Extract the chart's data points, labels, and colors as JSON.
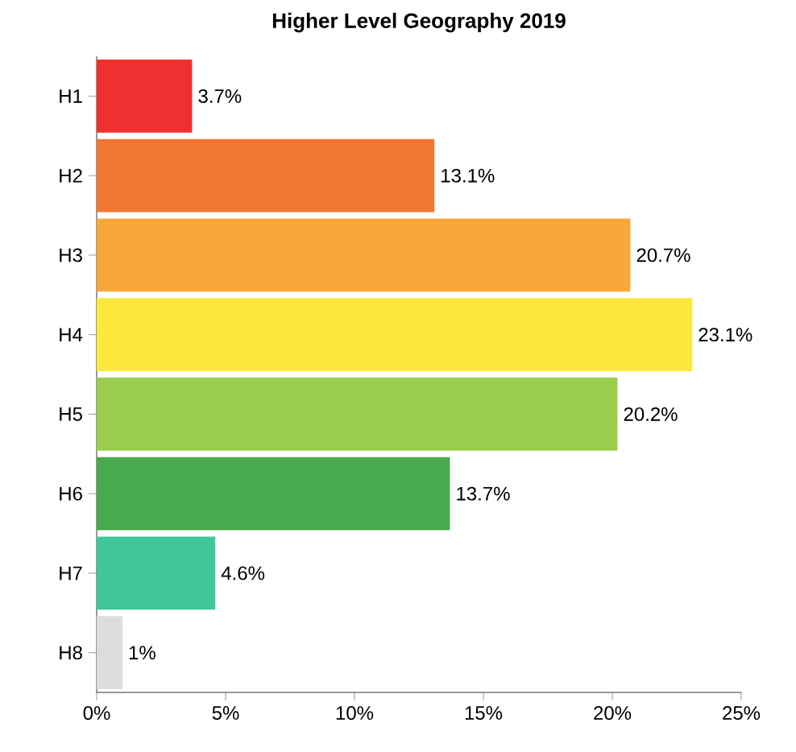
{
  "chart_data": {
    "type": "bar",
    "orientation": "horizontal",
    "title": "**Higher Level Geography 2019**",
    "categories": [
      "H1",
      "H2",
      "H3",
      "H4",
      "H5",
      "H6",
      "H7",
      "H8"
    ],
    "values": [
      3.7,
      13.1,
      20.7,
      23.1,
      20.2,
      13.7,
      4.6,
      1
    ],
    "value_labels": [
      "3.7%",
      "13.1%",
      "20.7%",
      "23.1%",
      "20.2%",
      "13.7%",
      "4.6%",
      "1%"
    ],
    "colors": [
      "#ee3030",
      "#f07832",
      "#f8a83a",
      "#fce83c",
      "#9acd4c",
      "#48aa4c",
      "#40c89c",
      "#dcdcdc"
    ],
    "xlim": [
      0,
      25
    ],
    "xticks": [
      {
        "value": 0,
        "label": "0%"
      },
      {
        "value": 5,
        "label": "5%"
      },
      {
        "value": 10,
        "label": "10%"
      },
      {
        "value": 15,
        "label": "15%"
      },
      {
        "value": 20,
        "label": "20%"
      },
      {
        "value": 25,
        "label": "25%"
      }
    ],
    "grid": false
  }
}
